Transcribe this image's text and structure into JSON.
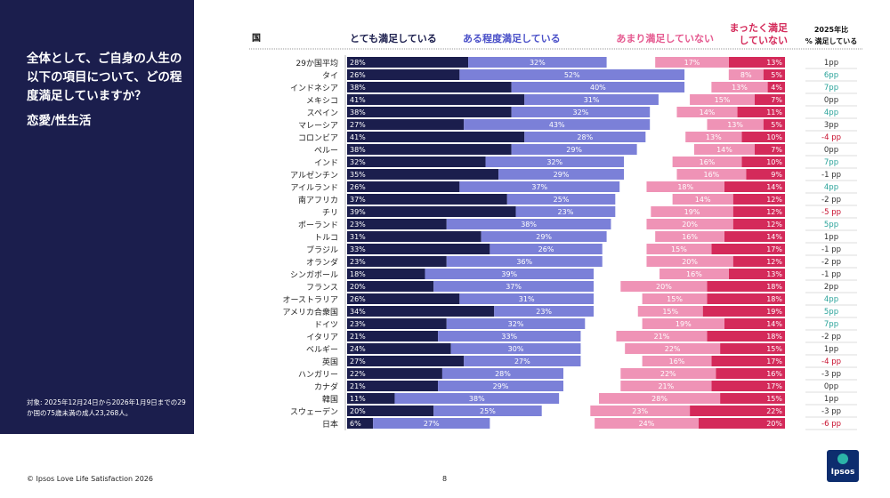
{
  "panel": {
    "question": "全体として、ご自身の人生の以下の項目について、どの程度満足していますか？",
    "subtopic": "恋愛/性生活",
    "note": "対象: 2025年12月24日から2026年1月9日までの29か国の75歳未満の成人23,268人。"
  },
  "footer": {
    "source": "© Ipsos Love Life Satisfaction 2026",
    "page": "8",
    "logo": "Ipsos"
  },
  "chart_data": {
    "type": "bar",
    "orientation": "horizontal",
    "stacked": "diverging",
    "country_header": "国",
    "change_header_line1": "2025年比",
    "change_header_line2": "% 満足している",
    "series": [
      {
        "name": "とても満足している",
        "color": "#1b1e4d",
        "values": [
          28,
          26,
          38,
          41,
          38,
          27,
          41,
          38,
          32,
          35,
          26,
          37,
          39,
          23,
          31,
          33,
          23,
          18,
          20,
          26,
          34,
          23,
          21,
          24,
          27,
          22,
          21,
          11,
          20,
          6
        ]
      },
      {
        "name": "ある程度満足している",
        "color": "#7b80d8",
        "values": [
          32,
          52,
          40,
          31,
          32,
          43,
          28,
          29,
          32,
          29,
          37,
          25,
          23,
          38,
          29,
          26,
          36,
          39,
          37,
          31,
          23,
          32,
          33,
          30,
          27,
          28,
          29,
          38,
          25,
          27
        ]
      },
      {
        "name": "あまり満足していない",
        "color": "#ef93b6",
        "values": [
          17,
          8,
          13,
          15,
          14,
          13,
          13,
          14,
          16,
          16,
          18,
          14,
          19,
          20,
          16,
          15,
          20,
          16,
          20,
          15,
          15,
          19,
          21,
          22,
          16,
          22,
          21,
          28,
          23,
          24
        ]
      },
      {
        "name_line1": "まったく満足",
        "name_line2": "していない",
        "color": "#d42a5a",
        "values": [
          13,
          5,
          4,
          7,
          11,
          5,
          10,
          7,
          10,
          9,
          14,
          12,
          12,
          12,
          14,
          17,
          12,
          13,
          18,
          18,
          19,
          14,
          18,
          15,
          17,
          16,
          17,
          15,
          22,
          20
        ]
      }
    ],
    "categories": [
      "29か国平均",
      "タイ",
      "インドネシア",
      "メキシコ",
      "スペイン",
      "マレーシア",
      "コロンビア",
      "ペルー",
      "インド",
      "アルゼンチン",
      "アイルランド",
      "南アフリカ",
      "チリ",
      "ポーランド",
      "トルコ",
      "ブラジル",
      "オランダ",
      "シンガポール",
      "フランス",
      "オーストラリア",
      "アメリカ合衆国",
      "ドイツ",
      "イタリア",
      "ベルギー",
      "英国",
      "ハンガリー",
      "カナダ",
      "韓国",
      "スウェーデン",
      "日本"
    ],
    "change_labels": [
      "1pp",
      "6pp",
      "7pp",
      "0pp",
      "4pp",
      "3pp",
      "-4 pp",
      "0pp",
      "7pp",
      "-1 pp",
      "4pp",
      "-2 pp",
      "-5 pp",
      "5pp",
      "1pp",
      "-1 pp",
      "-2 pp",
      "-1 pp",
      "2pp",
      "4pp",
      "5pp",
      "7pp",
      "-2 pp",
      "1pp",
      "-4 pp",
      "-3 pp",
      "0pp",
      "1pp",
      "-3 pp",
      "-6 pp"
    ],
    "change_values": [
      1,
      6,
      7,
      0,
      4,
      3,
      -4,
      0,
      7,
      -1,
      4,
      -2,
      -5,
      5,
      1,
      -1,
      -2,
      -1,
      2,
      4,
      5,
      7,
      -2,
      1,
      -4,
      -3,
      0,
      1,
      -3,
      -6
    ],
    "change_colors": {
      "up": "#2aa39a",
      "down": "#c8102e",
      "neutral": "#333333"
    }
  }
}
